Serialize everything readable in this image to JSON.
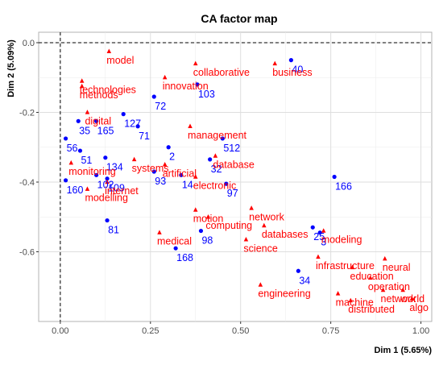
{
  "chart_data": {
    "type": "scatter",
    "title": "CA factor map",
    "xlabel": "Dim 1 (5.65%)",
    "ylabel": "Dim 2 (5.09%)",
    "xlim": [
      -0.06,
      1.03
    ],
    "ylim": [
      -0.8,
      0.03
    ],
    "xticks": [
      0.0,
      0.25,
      0.5,
      0.75,
      1.0
    ],
    "xtick_labels": [
      "0.00",
      "0.25",
      "0.50",
      "0.75",
      "1.00"
    ],
    "yticks": [
      0.0,
      -0.2,
      -0.4,
      -0.6
    ],
    "ytick_labels": [
      "0.0",
      "-0.2",
      "-0.4",
      "-0.6"
    ],
    "grid": true,
    "reference_lines": {
      "x": 0,
      "y": 0,
      "style": "dashed"
    },
    "series": [
      {
        "kind": "rows",
        "color": "#0000ff",
        "marker": "circle",
        "points": [
          {
            "label": "40",
            "x": 0.64,
            "y": -0.05
          },
          {
            "label": "103",
            "x": 0.38,
            "y": -0.12
          },
          {
            "label": "72",
            "x": 0.26,
            "y": -0.155
          },
          {
            "label": "127",
            "x": 0.175,
            "y": -0.205
          },
          {
            "label": "71",
            "x": 0.215,
            "y": -0.24
          },
          {
            "label": "35",
            "x": 0.05,
            "y": -0.225
          },
          {
            "label": "165",
            "x": 0.1,
            "y": -0.225
          },
          {
            "label": "56",
            "x": 0.015,
            "y": -0.275
          },
          {
            "label": "512",
            "x": 0.45,
            "y": -0.275
          },
          {
            "label": "2",
            "x": 0.3,
            "y": -0.3
          },
          {
            "label": "51",
            "x": 0.055,
            "y": -0.31
          },
          {
            "label": "134",
            "x": 0.125,
            "y": -0.33
          },
          {
            "label": "32",
            "x": 0.415,
            "y": -0.335
          },
          {
            "label": "166",
            "x": 0.76,
            "y": -0.385
          },
          {
            "label": "102",
            "x": 0.1,
            "y": -0.38
          },
          {
            "label": "93",
            "x": 0.26,
            "y": -0.37
          },
          {
            "label": "14",
            "x": 0.335,
            "y": -0.38
          },
          {
            "label": "97",
            "x": 0.46,
            "y": -0.405
          },
          {
            "label": "109",
            "x": 0.13,
            "y": -0.39
          },
          {
            "label": "160",
            "x": 0.015,
            "y": -0.395
          },
          {
            "label": "81",
            "x": 0.13,
            "y": -0.51
          },
          {
            "label": "25",
            "x": 0.7,
            "y": -0.53
          },
          {
            "label": "98",
            "x": 0.39,
            "y": -0.54
          },
          {
            "label": "3",
            "x": 0.72,
            "y": -0.545
          },
          {
            "label": "168",
            "x": 0.32,
            "y": -0.59
          },
          {
            "label": "34",
            "x": 0.66,
            "y": -0.655
          }
        ]
      },
      {
        "kind": "columns",
        "color": "#ff0000",
        "marker": "triangle",
        "points": [
          {
            "label": "model",
            "x": 0.135,
            "y": -0.025
          },
          {
            "label": "collaborative",
            "x": 0.375,
            "y": -0.06
          },
          {
            "label": "business",
            "x": 0.595,
            "y": -0.06
          },
          {
            "label": "innovation",
            "x": 0.29,
            "y": -0.1
          },
          {
            "label": "technologies",
            "x": 0.06,
            "y": -0.11
          },
          {
            "label": "methods",
            "x": 0.06,
            "y": -0.125
          },
          {
            "label": "digital",
            "x": 0.075,
            "y": -0.2
          },
          {
            "label": "management",
            "x": 0.36,
            "y": -0.24
          },
          {
            "label": "database",
            "x": 0.43,
            "y": -0.325
          },
          {
            "label": "systems",
            "x": 0.205,
            "y": -0.335
          },
          {
            "label": "monitoring",
            "x": 0.03,
            "y": -0.345
          },
          {
            "label": "artificial",
            "x": 0.29,
            "y": -0.35
          },
          {
            "label": "electronic",
            "x": 0.375,
            "y": -0.385
          },
          {
            "label": "internet",
            "x": 0.13,
            "y": -0.4
          },
          {
            "label": "modelling",
            "x": 0.075,
            "y": -0.42
          },
          {
            "label": "motion",
            "x": 0.375,
            "y": -0.48
          },
          {
            "label": "network",
            "x": 0.53,
            "y": -0.475
          },
          {
            "label": "computing",
            "x": 0.41,
            "y": -0.5
          },
          {
            "label": "databases",
            "x": 0.565,
            "y": -0.525
          },
          {
            "label": "medical",
            "x": 0.275,
            "y": -0.545
          },
          {
            "label": "modeling",
            "x": 0.73,
            "y": -0.54
          },
          {
            "label": "science",
            "x": 0.515,
            "y": -0.565
          },
          {
            "label": "infrastructure",
            "x": 0.715,
            "y": -0.615
          },
          {
            "label": "neural",
            "x": 0.9,
            "y": -0.62
          },
          {
            "label": "education",
            "x": 0.81,
            "y": -0.645
          },
          {
            "label": "operation",
            "x": 0.86,
            "y": -0.675
          },
          {
            "label": "engineering",
            "x": 0.555,
            "y": -0.695
          },
          {
            "label": "network",
            "x": 0.895,
            "y": -0.71
          },
          {
            "label": "machine",
            "x": 0.77,
            "y": -0.72
          },
          {
            "label": "distributed",
            "x": 0.805,
            "y": -0.74
          },
          {
            "label": "world",
            "x": 0.95,
            "y": -0.71
          },
          {
            "label": "algo",
            "x": 0.975,
            "y": -0.735
          }
        ]
      }
    ]
  }
}
